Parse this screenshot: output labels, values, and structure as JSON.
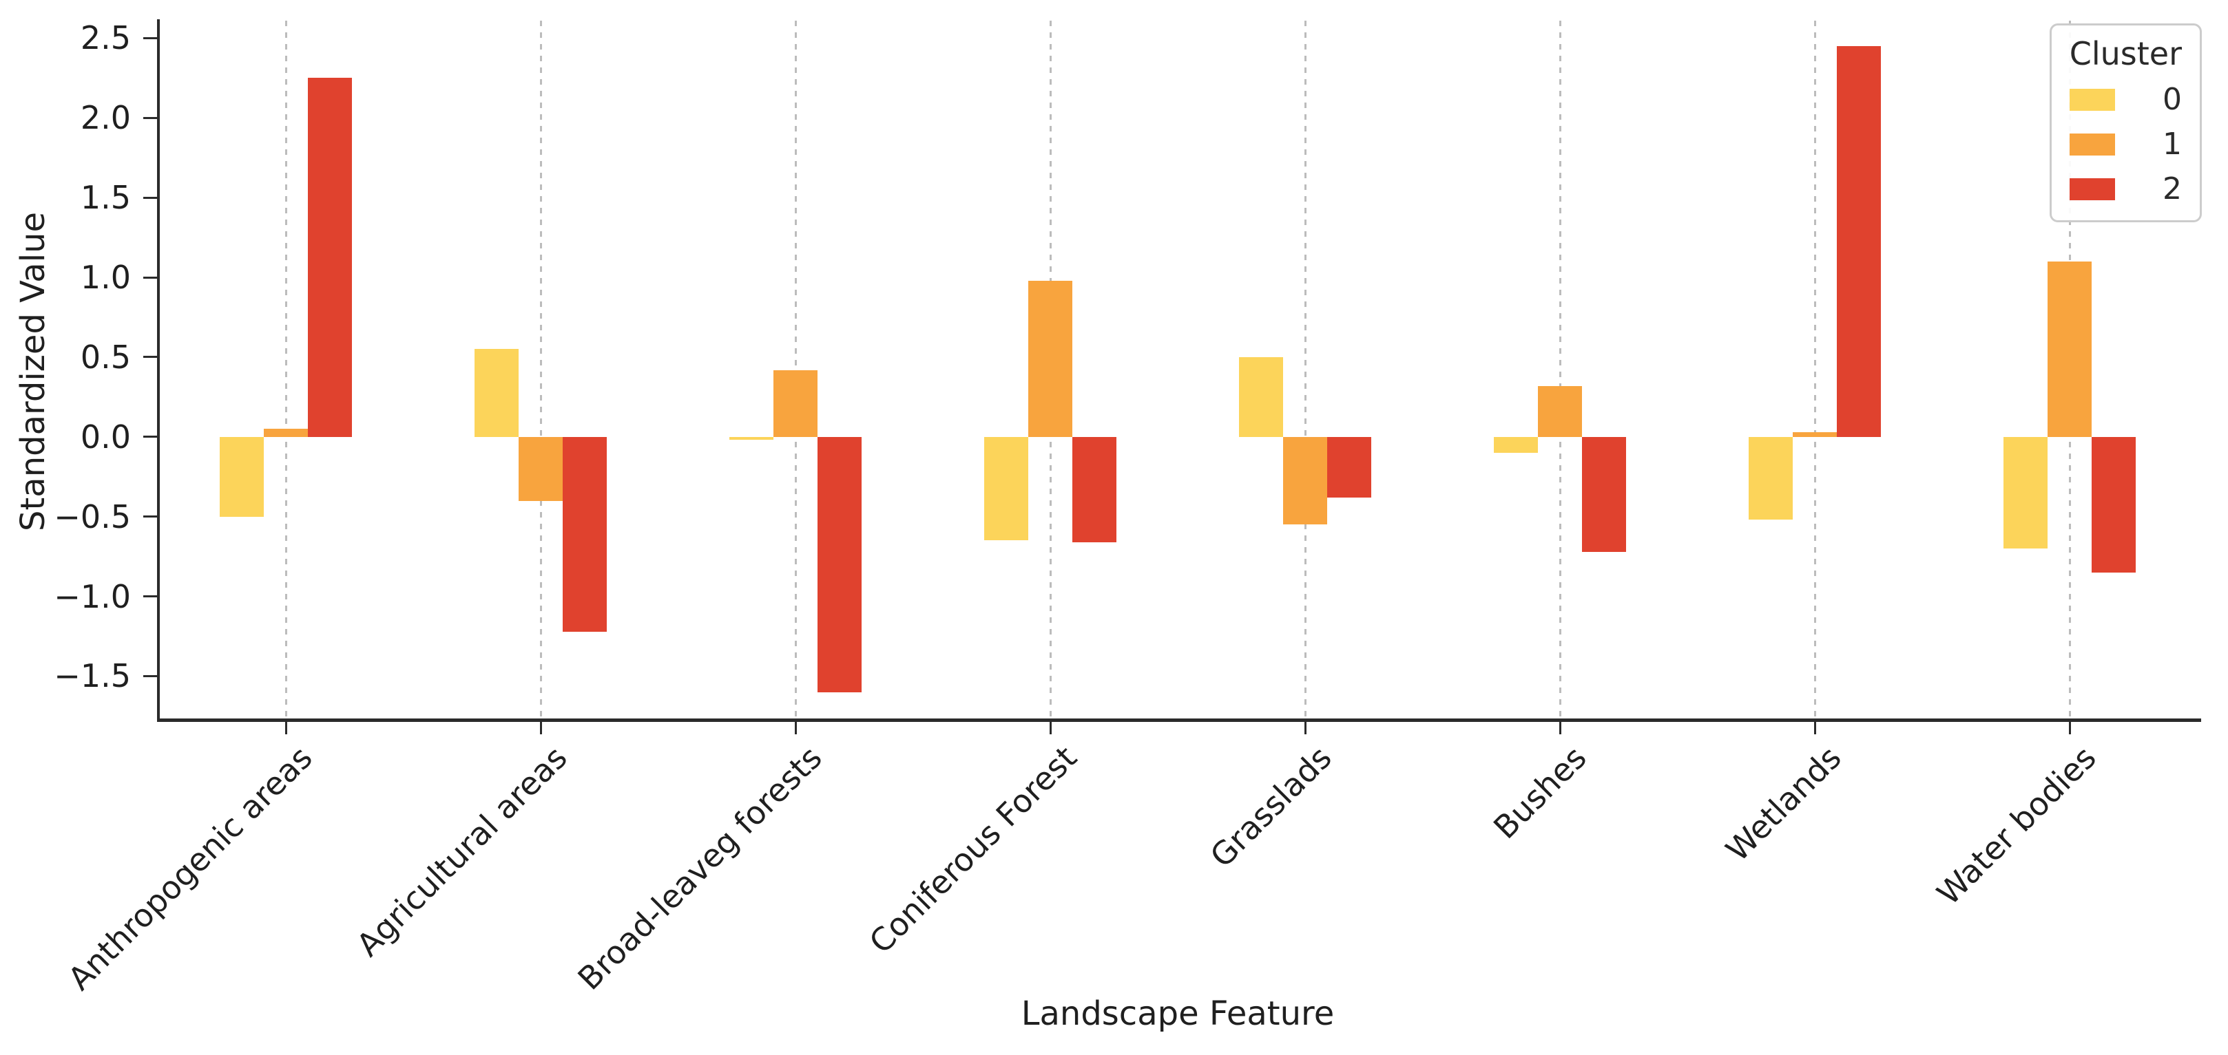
{
  "chart_data": {
    "type": "bar",
    "title": "",
    "xlabel": "Landscape Feature",
    "ylabel": "Standardized Value",
    "categories": [
      "Anthropogenic areas",
      "Agricultural areas",
      "Broad-leaveg forests",
      "Coniferous Forest",
      "Grasslads",
      "Bushes",
      "Wetlands",
      "Water bodies"
    ],
    "series": [
      {
        "name": "0",
        "color": "#fcd45a",
        "values": [
          -0.5,
          0.55,
          -0.02,
          -0.65,
          0.5,
          -0.1,
          -0.52,
          -0.7
        ]
      },
      {
        "name": "1",
        "color": "#f8a43e",
        "values": [
          0.05,
          -0.4,
          0.42,
          0.98,
          -0.55,
          0.32,
          0.03,
          1.1
        ]
      },
      {
        "name": "2",
        "color": "#e0422e",
        "values": [
          2.25,
          -1.22,
          -1.6,
          -0.66,
          -0.38,
          -0.72,
          2.45,
          -0.85
        ]
      }
    ],
    "ylim": [
      -1.77,
      2.61
    ],
    "yticks": [
      2.5,
      2.0,
      1.5,
      1.0,
      0.5,
      0.0,
      -0.5,
      -1.0,
      -1.5
    ],
    "ytick_labels": [
      "2.5",
      "2.0",
      "1.5",
      "1.0",
      "0.5",
      "0.0",
      "−0.5",
      "−1.0",
      "−1.5"
    ],
    "grid": "vertical-dashed",
    "grid_color": "#bcbcbc",
    "spine_color": "#2b2b2b",
    "legend": {
      "title": "Cluster",
      "position": "upper right"
    }
  }
}
